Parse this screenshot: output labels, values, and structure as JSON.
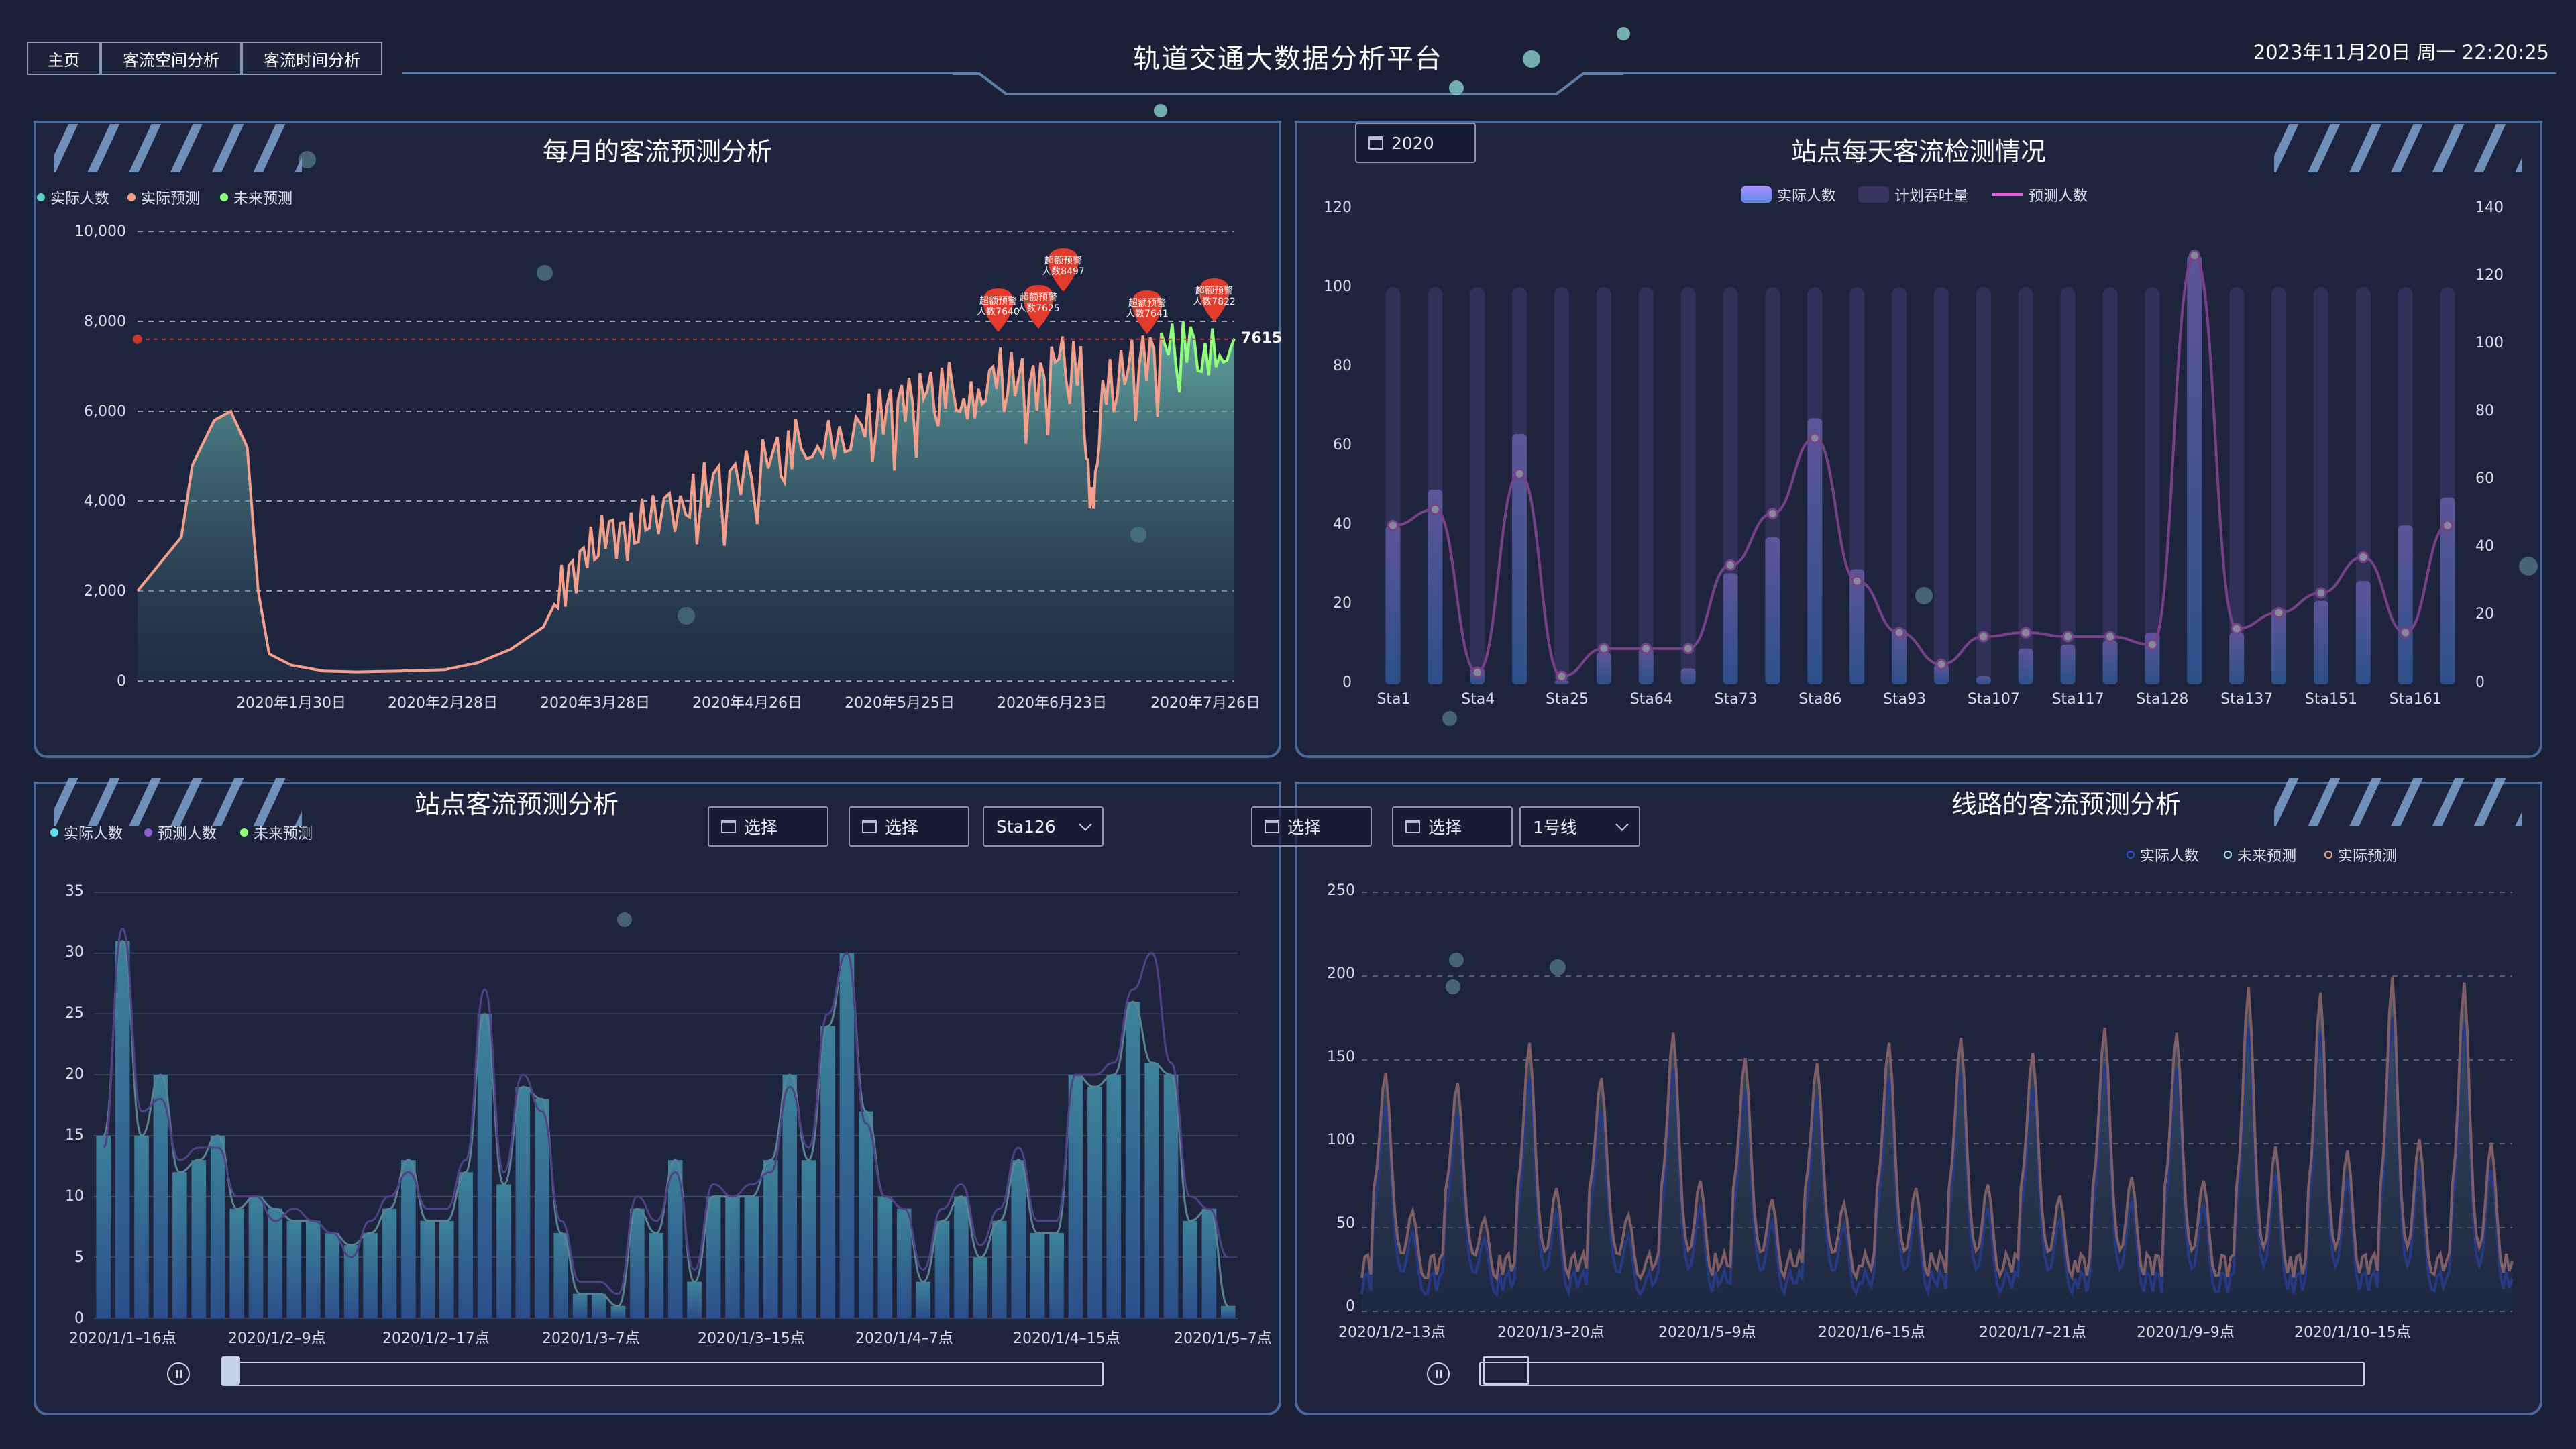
{
  "header": {
    "nav": [
      "主页",
      "客流空间分析",
      "客流时间分析"
    ],
    "title": "轨道交通大数据分析平台",
    "datetime": "2023年11月20日 周一 22:20:25"
  },
  "colors": {
    "background": "#1b2036",
    "teal": "#5ed0c8",
    "salmon": "#f2a08c",
    "green": "#8dff7a",
    "purple": "#8a5fd6",
    "pink": "#e060d8",
    "blue": "#4a86d8",
    "cyan": "#5fe0f2"
  },
  "panels": {
    "monthly": {
      "title": "每月的客流预测分析",
      "legend": [
        "实际人数",
        "实际预测",
        "未来预测"
      ],
      "yticks": [
        "10,000",
        "8,000",
        "6,000",
        "4,000",
        "2,000",
        "0"
      ],
      "xticks": [
        "2020年1月30日",
        "2020年2月28日",
        "2020年3月28日",
        "2020年4月26日",
        "2020年5月25日",
        "2020年6月23日",
        "2020年7月26日"
      ],
      "last_value": "7615",
      "markers": [
        {
          "label": "超额预警\n人数7640"
        },
        {
          "label": "超额预警\n人数7625"
        },
        {
          "label": "超额预警\n人数8497"
        },
        {
          "label": "超额预警\n人数7641"
        },
        {
          "label": "超额预警\n人数7822"
        }
      ]
    },
    "station_daily": {
      "title": "站点每天客流检测情况",
      "year_value": "2020",
      "legend": [
        "实际人数",
        "计划吞吐量",
        "预测人数"
      ],
      "yticks_left": [
        "120",
        "100",
        "80",
        "60",
        "40",
        "20",
        "0"
      ],
      "yticks_right": [
        "140",
        "120",
        "100",
        "80",
        "60",
        "40",
        "20",
        "0"
      ],
      "xticks": [
        "Sta1",
        "Sta4",
        "Sta25",
        "Sta64",
        "Sta73",
        "Sta86",
        "Sta93",
        "Sta107",
        "Sta117",
        "Sta128",
        "Sta137",
        "Sta151",
        "Sta161"
      ]
    },
    "station_pred": {
      "title": "站点客流预测分析",
      "legend": [
        "实际人数",
        "预测人数",
        "未来预测"
      ],
      "selectors": [
        "选择",
        "选择",
        "Sta126"
      ],
      "yticks": [
        "35",
        "30",
        "25",
        "20",
        "15",
        "10",
        "5",
        "0"
      ],
      "xticks": [
        "2020/1/1–16点",
        "2020/1/2–9点",
        "2020/1/2–17点",
        "2020/1/3–7点",
        "2020/1/3–15点",
        "2020/1/4–7点",
        "2020/1/4–15点",
        "2020/1/5–7点"
      ]
    },
    "line_pred": {
      "title": "线路的客流预测分析",
      "legend": [
        "实际人数",
        "未来预测",
        "实际预测"
      ],
      "selectors": [
        "选择",
        "选择",
        "1号线"
      ],
      "yticks": [
        "250",
        "200",
        "150",
        "100",
        "50",
        "0"
      ],
      "xticks": [
        "2020/1/2–13点",
        "2020/1/3–20点",
        "2020/1/5–9点",
        "2020/1/6–15点",
        "2020/1/7–21点",
        "2020/1/9–9点",
        "2020/1/10–15点"
      ]
    }
  },
  "chart_data": [
    {
      "type": "area",
      "title": "每月的客流预测分析",
      "series_names": [
        "实际人数",
        "实际预测",
        "未来预测"
      ],
      "ylim": [
        0,
        10000
      ],
      "points_x_fraction_y_value": [
        [
          0,
          2000
        ],
        [
          0.02,
          2600
        ],
        [
          0.04,
          3200
        ],
        [
          0.05,
          4800
        ],
        [
          0.07,
          5800
        ],
        [
          0.085,
          6000
        ],
        [
          0.1,
          5200
        ],
        [
          0.11,
          2000
        ],
        [
          0.12,
          600
        ],
        [
          0.14,
          350
        ],
        [
          0.17,
          220
        ],
        [
          0.2,
          200
        ],
        [
          0.24,
          220
        ],
        [
          0.28,
          250
        ],
        [
          0.31,
          400
        ],
        [
          0.34,
          700
        ],
        [
          0.37,
          1200
        ],
        [
          0.39,
          2200
        ],
        [
          0.41,
          2800
        ],
        [
          0.43,
          3300
        ],
        [
          0.45,
          3200
        ],
        [
          0.47,
          3800
        ],
        [
          0.5,
          3900
        ],
        [
          0.52,
          4400
        ],
        [
          0.55,
          4500
        ],
        [
          0.58,
          5000
        ],
        [
          0.6,
          5300
        ],
        [
          0.63,
          5400
        ],
        [
          0.66,
          5800
        ],
        [
          0.68,
          6000
        ],
        [
          0.7,
          6200
        ],
        [
          0.72,
          6400
        ],
        [
          0.74,
          6600
        ],
        [
          0.76,
          6200
        ],
        [
          0.78,
          7000
        ],
        [
          0.8,
          6800
        ],
        [
          0.82,
          6500
        ],
        [
          0.84,
          7200
        ],
        [
          0.86,
          7000
        ],
        [
          0.87,
          3800
        ],
        [
          0.88,
          6600
        ],
        [
          0.9,
          7000
        ],
        [
          0.92,
          7200
        ],
        [
          0.94,
          7400
        ],
        [
          0.96,
          7500
        ],
        [
          0.98,
          7300
        ],
        [
          1.0,
          7615
        ]
      ],
      "future_from_fraction": 0.93,
      "reference_line_y": 7600
    },
    {
      "type": "bar",
      "title": "站点每天客流检测情况",
      "categories_count": 26,
      "planned": [
        100,
        100,
        100,
        100,
        100,
        100,
        100,
        100,
        100,
        100,
        100,
        100,
        100,
        100,
        100,
        100,
        100,
        100,
        100,
        100,
        100,
        100,
        100,
        100,
        100,
        100
      ],
      "actual": [
        40,
        49,
        4,
        63,
        1,
        8,
        9,
        4,
        28,
        37,
        67,
        29,
        14,
        5,
        2,
        9,
        10,
        11,
        13,
        108,
        13,
        19,
        21,
        26,
        40,
        47
      ],
      "predicted": [
        40,
        44,
        3,
        53,
        2,
        9,
        9,
        9,
        30,
        43,
        62,
        26,
        13,
        5,
        12,
        13,
        12,
        12,
        10,
        108,
        14,
        18,
        23,
        32,
        13,
        40
      ],
      "ylim": [
        0,
        120
      ]
    },
    {
      "type": "bar",
      "title": "站点客流预测分析",
      "actual": [
        15,
        31,
        15,
        20,
        12,
        13,
        15,
        9,
        10,
        9,
        8,
        8,
        7,
        6,
        7,
        9,
        13,
        8,
        8,
        12,
        25,
        11,
        19,
        18,
        7,
        2,
        2,
        1,
        9,
        7,
        13,
        3,
        10,
        10,
        10,
        13,
        20,
        13,
        24,
        30,
        17,
        10,
        9,
        3,
        8,
        10,
        5,
        8,
        13,
        7,
        7,
        20,
        19,
        20,
        26,
        21,
        20,
        8,
        9,
        1
      ],
      "predicted": [
        14,
        32,
        17,
        18,
        13,
        14,
        14,
        10,
        10,
        8,
        9,
        8,
        7,
        5,
        8,
        10,
        12,
        9,
        9,
        13,
        27,
        12,
        20,
        17,
        8,
        3,
        3,
        2,
        10,
        8,
        12,
        4,
        11,
        10,
        11,
        12,
        19,
        14,
        25,
        30,
        16,
        10,
        9,
        4,
        9,
        11,
        6,
        9,
        14,
        8,
        8,
        20,
        20,
        21,
        27,
        30,
        21,
        10,
        9,
        5
      ],
      "ylim": [
        0,
        35
      ]
    },
    {
      "type": "line",
      "title": "线路的客流预测分析",
      "ylim": [
        0,
        250
      ],
      "peaks_approx": [
        120,
        110,
        150,
        115,
        160,
        135,
        130,
        150,
        155,
        140,
        165,
        160,
        205,
        200,
        215,
        210
      ]
    }
  ]
}
